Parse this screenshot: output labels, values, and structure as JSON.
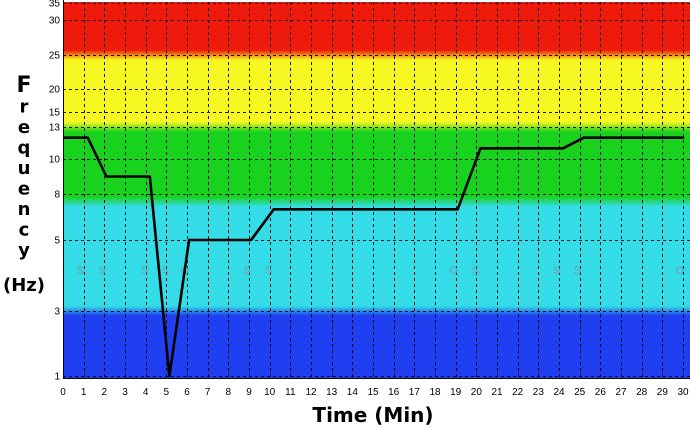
{
  "chart_data": {
    "type": "line",
    "xlabel": "Time (Min)",
    "ylabel": "Frequency (Hz)",
    "ylabel_parts": {
      "letters": [
        "F",
        "r",
        "e",
        "q",
        "u",
        "e",
        "n",
        "c",
        "y"
      ],
      "unit": "(Hz)"
    },
    "xlim": [
      0,
      30
    ],
    "x_ticks": [
      "0",
      "1",
      "2",
      "3",
      "4",
      "5",
      "6",
      "7",
      "8",
      "9",
      "10",
      "11",
      "12",
      "13",
      "14",
      "15",
      "16",
      "17",
      "18",
      "19",
      "20",
      "21",
      "22",
      "23",
      "24",
      "25",
      "26",
      "27",
      "28",
      "29",
      "30"
    ],
    "y_ticks": [
      {
        "value": 1,
        "label": "1"
      },
      {
        "value": 3,
        "label": "3"
      },
      {
        "value": 5,
        "label": "5"
      },
      {
        "value": 8,
        "label": "8"
      },
      {
        "value": 10,
        "label": "10"
      },
      {
        "value": 13,
        "label": "13"
      },
      {
        "value": 15,
        "label": "15"
      },
      {
        "value": 20,
        "label": "20"
      },
      {
        "value": 25,
        "label": "25"
      },
      {
        "value": 30,
        "label": "30"
      },
      {
        "value": 35,
        "label": "35"
      }
    ],
    "grid": true,
    "bands": [
      {
        "from": 1,
        "to": 3,
        "color": "#1f3ff0"
      },
      {
        "from": 3,
        "to": 7.5,
        "color": "#33dce6"
      },
      {
        "from": 7.5,
        "to": 13,
        "color": "#19d21e"
      },
      {
        "from": 13,
        "to": 25,
        "color": "#f7f722"
      },
      {
        "from": 25,
        "to": 36,
        "color": "#ee1b0d"
      }
    ],
    "series": [
      {
        "color": "#000000",
        "points": [
          [
            0,
            12
          ],
          [
            1.2,
            12
          ],
          [
            2.1,
            9
          ],
          [
            4.2,
            9
          ],
          [
            5.15,
            1
          ],
          [
            6.1,
            5
          ],
          [
            9.1,
            5
          ],
          [
            10.2,
            7
          ],
          [
            19.1,
            7
          ],
          [
            20.2,
            11
          ],
          [
            24.2,
            11
          ],
          [
            25.2,
            12
          ],
          [
            30,
            12
          ]
        ]
      }
    ],
    "annotations": [
      {
        "x": 0.85,
        "label": "S"
      },
      {
        "x": 1.9,
        "label": "S"
      },
      {
        "x": 3.95,
        "label": "S"
      },
      {
        "x": 4.95,
        "label": "S"
      },
      {
        "x": 5.9,
        "label": "O"
      },
      {
        "x": 8.9,
        "label": "S"
      },
      {
        "x": 9.95,
        "label": "S"
      },
      {
        "x": 18.9,
        "label": "O"
      },
      {
        "x": 19.95,
        "label": "S"
      },
      {
        "x": 23.9,
        "label": "S"
      },
      {
        "x": 24.9,
        "label": "S"
      },
      {
        "x": 29.85,
        "label": "O"
      }
    ]
  }
}
